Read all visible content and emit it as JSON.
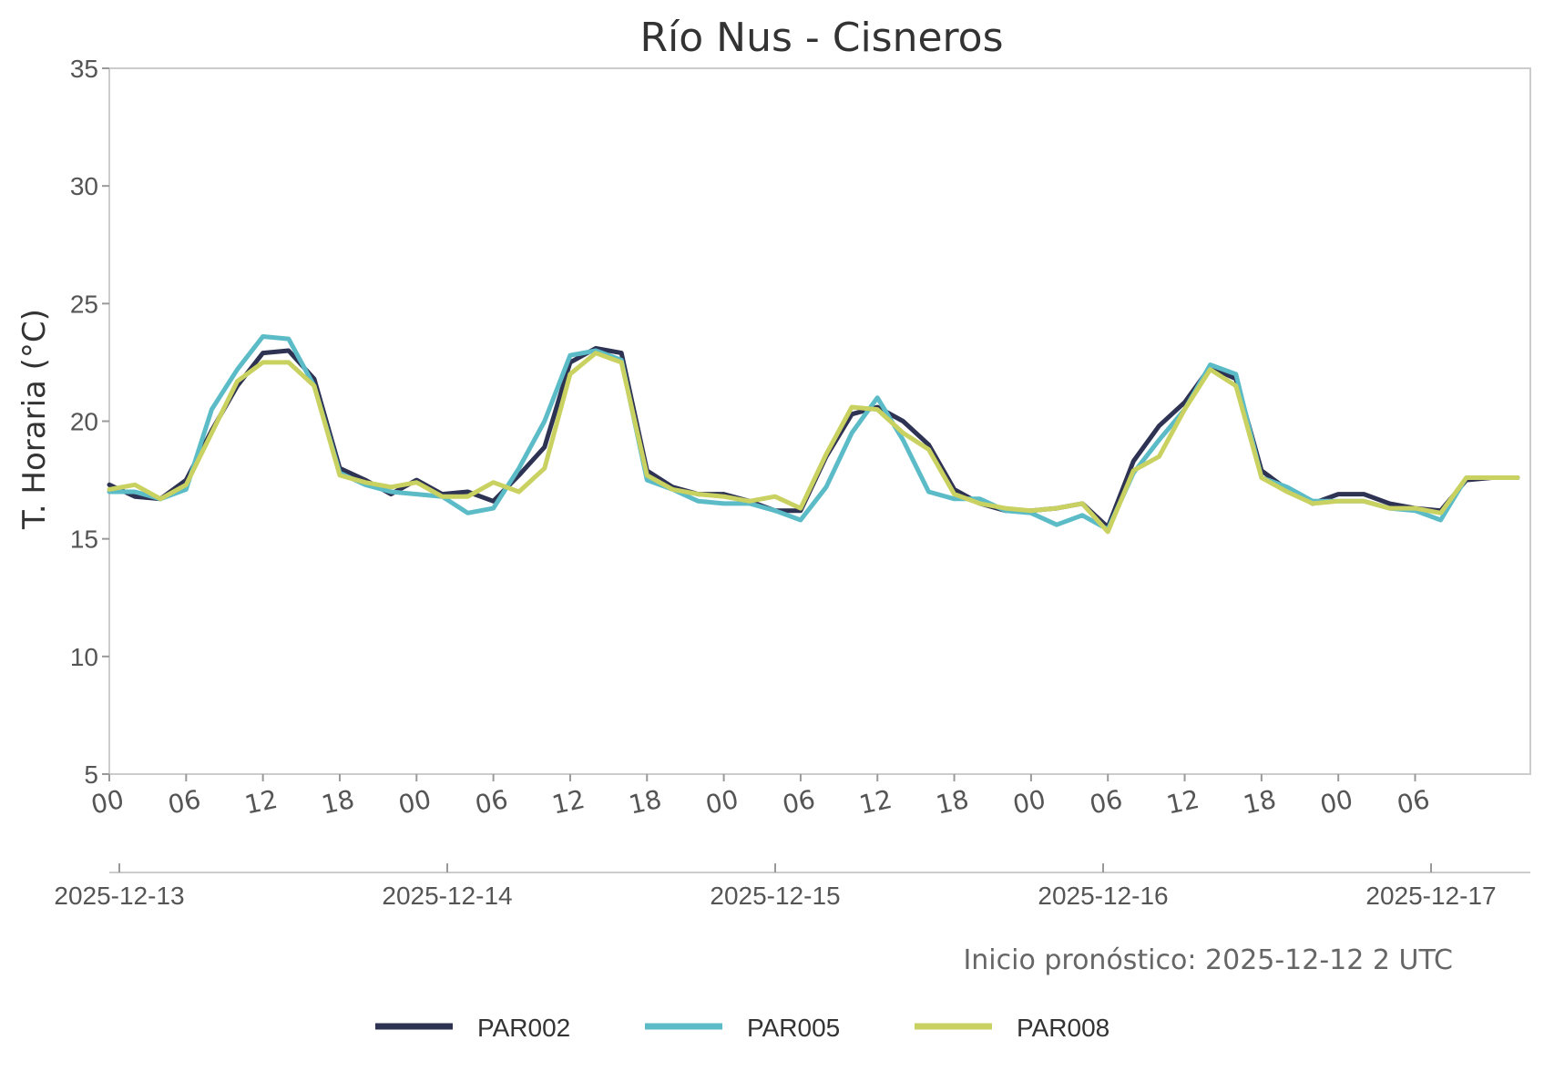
{
  "chart_data": {
    "type": "line",
    "title": "Río Nus - Cisneros",
    "ylabel": "T. Horaria (°C)",
    "xlabel": "",
    "ylim": [
      5,
      35
    ],
    "yticks": [
      5,
      10,
      15,
      20,
      25,
      30,
      35
    ],
    "x_hour_labels": [
      "00",
      "06",
      "12",
      "18",
      "00",
      "06",
      "12",
      "18",
      "00",
      "06",
      "12",
      "18",
      "00",
      "06",
      "12",
      "18",
      "00",
      "06"
    ],
    "x_date_labels": [
      "2025-12-13",
      "2025-12-14",
      "2025-12-15",
      "2025-12-16",
      "2025-12-17"
    ],
    "grid": false,
    "legend_position": "bottom",
    "annotation": "Inicio pronóstico: 2025-12-12 2 UTC",
    "series": [
      {
        "name": "PAR002",
        "color": "#2e3354",
        "hours": [
          0,
          2,
          4,
          6,
          8,
          10,
          12,
          14,
          16,
          18,
          20,
          22,
          24,
          26,
          28,
          30,
          32,
          34,
          36,
          38,
          40,
          42,
          44,
          46,
          48,
          50,
          52,
          54,
          56,
          58,
          60,
          62,
          64,
          66,
          68,
          70,
          72,
          74,
          76,
          78,
          80,
          82,
          84,
          86,
          88,
          90,
          92,
          94,
          96,
          98,
          100,
          102,
          104,
          106,
          108,
          110
        ],
        "values": [
          17.3,
          16.8,
          16.7,
          17.5,
          19.6,
          21.5,
          22.9,
          23.0,
          21.8,
          18.0,
          17.5,
          16.9,
          17.5,
          16.9,
          17.0,
          16.6,
          17.7,
          18.9,
          22.5,
          23.1,
          22.9,
          17.9,
          17.2,
          16.9,
          16.9,
          16.6,
          16.2,
          16.2,
          18.5,
          20.3,
          20.6,
          20.0,
          19.0,
          17.1,
          16.5,
          16.2,
          16.2,
          16.3,
          16.5,
          15.5,
          18.3,
          19.8,
          20.8,
          22.3,
          21.8,
          17.9,
          17.1,
          16.5,
          16.9,
          16.9,
          16.5,
          16.3,
          16.2,
          17.5,
          17.6,
          17.6
        ]
      },
      {
        "name": "PAR005",
        "color": "#5bbcc8",
        "hours": [
          0,
          2,
          4,
          6,
          8,
          10,
          12,
          14,
          16,
          18,
          20,
          22,
          24,
          26,
          28,
          30,
          32,
          34,
          36,
          38,
          40,
          42,
          44,
          46,
          48,
          50,
          52,
          54,
          56,
          58,
          60,
          62,
          64,
          66,
          68,
          70,
          72,
          74,
          76,
          78,
          80,
          82,
          84,
          86,
          88,
          90,
          92,
          94,
          96,
          98,
          100,
          102,
          104,
          106,
          108,
          110
        ],
        "values": [
          17.0,
          17.0,
          16.7,
          17.1,
          20.5,
          22.2,
          23.6,
          23.5,
          21.5,
          17.8,
          17.3,
          17.0,
          16.9,
          16.8,
          16.1,
          16.3,
          18.0,
          20.0,
          22.8,
          23.0,
          22.6,
          17.5,
          17.1,
          16.6,
          16.5,
          16.5,
          16.2,
          15.8,
          17.2,
          19.5,
          21.0,
          19.2,
          17.0,
          16.7,
          16.7,
          16.2,
          16.1,
          15.6,
          16.0,
          15.4,
          17.8,
          19.2,
          20.5,
          22.4,
          22.0,
          17.6,
          17.2,
          16.6,
          16.6,
          16.6,
          16.3,
          16.2,
          15.8,
          17.6,
          17.6,
          17.6
        ]
      },
      {
        "name": "PAR008",
        "color": "#c9d161",
        "hours": [
          0,
          2,
          4,
          6,
          8,
          10,
          12,
          14,
          16,
          18,
          20,
          22,
          24,
          26,
          28,
          30,
          32,
          34,
          36,
          38,
          40,
          42,
          44,
          46,
          48,
          50,
          52,
          54,
          56,
          58,
          60,
          62,
          64,
          66,
          68,
          70,
          72,
          74,
          76,
          78,
          80,
          82,
          84,
          86,
          88,
          90,
          92,
          94,
          96,
          98,
          100,
          102,
          104,
          106,
          108,
          110
        ],
        "values": [
          17.1,
          17.3,
          16.7,
          17.3,
          19.5,
          21.7,
          22.5,
          22.5,
          21.5,
          17.7,
          17.4,
          17.2,
          17.4,
          16.8,
          16.8,
          17.4,
          17.0,
          18.0,
          22.0,
          22.9,
          22.5,
          17.7,
          17.1,
          16.9,
          16.8,
          16.6,
          16.8,
          16.3,
          18.6,
          20.6,
          20.5,
          19.5,
          18.8,
          16.9,
          16.5,
          16.3,
          16.2,
          16.3,
          16.5,
          15.3,
          17.9,
          18.5,
          20.5,
          22.2,
          21.5,
          17.6,
          17.0,
          16.5,
          16.6,
          16.6,
          16.3,
          16.3,
          16.1,
          17.6,
          17.6,
          17.6
        ]
      }
    ]
  }
}
